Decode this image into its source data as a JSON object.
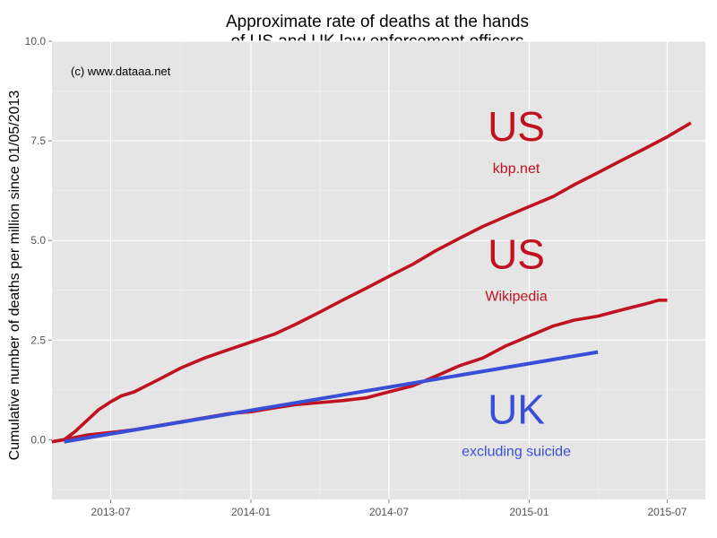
{
  "colors": {
    "us": "#c1121f",
    "uk": "#3a4fd8",
    "panel": "#e5e5e5",
    "grid": "#ffffff"
  },
  "chart_data": {
    "type": "line",
    "title": [
      "Approximate rate of deaths at the hands",
      "of US and UK law enforcement officers"
    ],
    "ylabel": "Cumulative number of deaths per million since 01/05/2013",
    "xlabel": "",
    "watermark": "(c) www.dataaa.net",
    "grid": true,
    "legend": "none",
    "ylim": [
      -1.5,
      10.0
    ],
    "xlim": [
      "2013-04-15",
      "2015-08-20"
    ],
    "y_ticks": [
      0.0,
      2.5,
      5.0,
      7.5,
      10.0
    ],
    "y_tick_labels": [
      "0.0",
      "2.5",
      "5.0",
      "7.5",
      "10.0"
    ],
    "x_ticks": [
      "2013-07-01",
      "2014-01-01",
      "2014-07-01",
      "2015-01-01",
      "2015-07-01"
    ],
    "x_tick_labels": [
      "2013-07",
      "2014-01",
      "2014-07",
      "2015-01",
      "2015-07"
    ],
    "series": [
      {
        "id": "us-kbp",
        "color": "us",
        "x": [
          "2013-04-15",
          "2013-05-01",
          "2013-05-15",
          "2013-06-01",
          "2013-06-15",
          "2013-07-01",
          "2013-07-15",
          "2013-08-01",
          "2013-09-01",
          "2013-10-01",
          "2013-11-01",
          "2013-12-01",
          "2014-01-01",
          "2014-02-01",
          "2014-03-01",
          "2014-04-01",
          "2014-05-01",
          "2014-06-01",
          "2014-07-01",
          "2014-08-01",
          "2014-09-01",
          "2014-10-01",
          "2014-11-01",
          "2014-12-01",
          "2015-01-01",
          "2015-02-01",
          "2015-03-01",
          "2015-04-01",
          "2015-05-01",
          "2015-06-01",
          "2015-07-01",
          "2015-08-01"
        ],
        "y": [
          -0.05,
          0.0,
          0.2,
          0.5,
          0.75,
          0.95,
          1.1,
          1.2,
          1.5,
          1.8,
          2.05,
          2.25,
          2.45,
          2.65,
          2.9,
          3.2,
          3.5,
          3.8,
          4.1,
          4.4,
          4.75,
          5.05,
          5.35,
          5.6,
          5.85,
          6.1,
          6.4,
          6.7,
          7.0,
          7.3,
          7.6,
          7.95
        ]
      },
      {
        "id": "us-wikipedia",
        "color": "us",
        "x": [
          "2013-04-15",
          "2013-05-01",
          "2013-06-01",
          "2013-07-01",
          "2013-08-01",
          "2013-09-01",
          "2013-10-01",
          "2013-11-01",
          "2013-12-01",
          "2014-01-01",
          "2014-02-01",
          "2014-03-01",
          "2014-04-01",
          "2014-05-01",
          "2014-06-01",
          "2014-07-01",
          "2014-08-01",
          "2014-09-01",
          "2014-10-01",
          "2014-11-01",
          "2014-12-01",
          "2015-01-01",
          "2015-02-01",
          "2015-03-01",
          "2015-04-01",
          "2015-05-01",
          "2015-06-01",
          "2015-06-20",
          "2015-07-01"
        ],
        "y": [
          -0.05,
          0.0,
          0.12,
          0.18,
          0.25,
          0.35,
          0.45,
          0.55,
          0.65,
          0.7,
          0.8,
          0.88,
          0.93,
          0.98,
          1.05,
          1.2,
          1.35,
          1.6,
          1.85,
          2.05,
          2.35,
          2.6,
          2.85,
          3.0,
          3.1,
          3.25,
          3.4,
          3.5,
          3.5
        ]
      },
      {
        "id": "uk",
        "color": "uk",
        "x": [
          "2013-05-01",
          "2015-04-01"
        ],
        "y": [
          -0.05,
          2.2
        ]
      }
    ],
    "annotations": [
      {
        "id": "us-kbp",
        "title": "US",
        "subtitle": "kbp.net",
        "x": "2014-12-15",
        "y": 7.5,
        "color": "us"
      },
      {
        "id": "us-wikipedia",
        "title": "US",
        "subtitle": "Wikipedia",
        "x": "2014-12-15",
        "y": 4.3,
        "color": "us"
      },
      {
        "id": "uk",
        "title": "UK",
        "subtitle": "excluding suicide",
        "x": "2014-12-15",
        "y": 0.4,
        "color": "uk"
      }
    ]
  }
}
